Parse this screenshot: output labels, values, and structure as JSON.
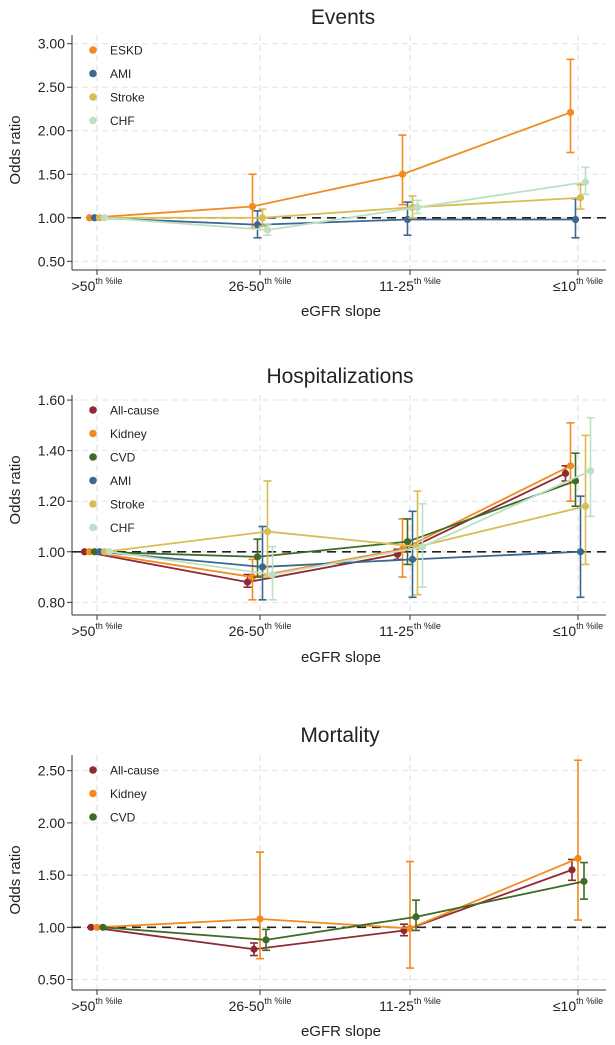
{
  "chart_data": [
    {
      "type": "line",
      "title": "Events",
      "xlabel": "eGFR slope",
      "ylabel": "Odds ratio",
      "categories": [
        {
          "main": ">50",
          "sup": "th %ile"
        },
        {
          "main": "26-50",
          "sup": "th %ile"
        },
        {
          "main": "11-25",
          "sup": "th %ile"
        },
        {
          "main": "≤10",
          "sup": "th %ile"
        }
      ],
      "ylim": [
        0.4,
        3.1
      ],
      "yticks": [
        0.5,
        1.0,
        1.5,
        2.0,
        2.5,
        3.0
      ],
      "ytick_labels": [
        "0.50",
        "1.00",
        "1.50",
        "2.00",
        "2.50",
        "3.00"
      ],
      "reference_line": 1.0,
      "series": [
        {
          "name": "ESKD",
          "color": "#f28a1e",
          "values": [
            1.0,
            1.13,
            1.5,
            2.21
          ],
          "ci_low": [
            1.0,
            0.88,
            1.15,
            1.75
          ],
          "ci_high": [
            1.0,
            1.5,
            1.95,
            2.82
          ]
        },
        {
          "name": "AMI",
          "color": "#3b6790",
          "values": [
            1.0,
            0.92,
            0.98,
            0.98
          ],
          "ci_low": [
            1.0,
            0.77,
            0.8,
            0.77
          ],
          "ci_high": [
            1.0,
            1.08,
            1.18,
            1.22
          ]
        },
        {
          "name": "Stroke",
          "color": "#d8bd52",
          "values": [
            1.0,
            1.0,
            1.12,
            1.23
          ],
          "ci_low": [
            1.0,
            0.9,
            1.0,
            1.1
          ],
          "ci_high": [
            1.0,
            1.1,
            1.25,
            1.38
          ]
        },
        {
          "name": "CHF",
          "color": "#bddfc2",
          "values": [
            1.0,
            0.86,
            1.12,
            1.41
          ],
          "ci_low": [
            1.0,
            0.8,
            1.05,
            1.27
          ],
          "ci_high": [
            1.0,
            0.93,
            1.2,
            1.58
          ]
        }
      ]
    },
    {
      "type": "line",
      "title": "Hospitalizations",
      "xlabel": "eGFR slope",
      "ylabel": "Odds ratio",
      "categories": [
        {
          "main": ">50",
          "sup": "th %ile"
        },
        {
          "main": "26-50",
          "sup": "th %ile"
        },
        {
          "main": "11-25",
          "sup": "th %ile"
        },
        {
          "main": "≤10",
          "sup": "th %ile"
        }
      ],
      "ylim": [
        0.75,
        1.62
      ],
      "yticks": [
        0.8,
        1.0,
        1.2,
        1.4,
        1.6
      ],
      "ytick_labels": [
        "0.80",
        "1.00",
        "1.20",
        "1.40",
        "1.60"
      ],
      "reference_line": 1.0,
      "series": [
        {
          "name": "All-cause",
          "color": "#8e2a33",
          "values": [
            1.0,
            0.88,
            0.99,
            1.31
          ],
          "ci_low": [
            1.0,
            0.86,
            0.97,
            1.28
          ],
          "ci_high": [
            1.0,
            0.91,
            1.01,
            1.34
          ]
        },
        {
          "name": "Kidney",
          "color": "#f28a1e",
          "values": [
            1.0,
            0.9,
            1.01,
            1.34
          ],
          "ci_low": [
            1.0,
            0.81,
            0.9,
            1.2
          ],
          "ci_high": [
            1.0,
            0.97,
            1.13,
            1.51
          ]
        },
        {
          "name": "CVD",
          "color": "#3e6b25",
          "values": [
            1.0,
            0.98,
            1.04,
            1.28
          ],
          "ci_low": [
            1.0,
            0.9,
            0.95,
            1.18
          ],
          "ci_high": [
            1.0,
            1.05,
            1.13,
            1.39
          ]
        },
        {
          "name": "AMI",
          "color": "#3b6790",
          "values": [
            1.0,
            0.94,
            0.97,
            1.0
          ],
          "ci_low": [
            1.0,
            0.81,
            0.82,
            0.82
          ],
          "ci_high": [
            1.0,
            1.1,
            1.16,
            1.22
          ]
        },
        {
          "name": "Stroke",
          "color": "#d8bd52",
          "values": [
            1.0,
            1.08,
            1.02,
            1.18
          ],
          "ci_low": [
            1.0,
            0.9,
            0.83,
            0.95
          ],
          "ci_high": [
            1.0,
            1.28,
            1.24,
            1.46
          ]
        },
        {
          "name": "CHF",
          "color": "#bddfc2",
          "values": [
            1.0,
            0.91,
            1.02,
            1.32
          ],
          "ci_low": [
            1.0,
            0.81,
            0.86,
            1.14
          ],
          "ci_high": [
            1.0,
            1.02,
            1.19,
            1.53
          ]
        }
      ]
    },
    {
      "type": "line",
      "title": "Mortality",
      "xlabel": "eGFR slope",
      "ylabel": "Odds ratio",
      "categories": [
        {
          "main": ">50",
          "sup": "th %ile"
        },
        {
          "main": "26-50",
          "sup": "th %ile"
        },
        {
          "main": "11-25",
          "sup": "th %ile"
        },
        {
          "main": "≤10",
          "sup": "th %ile"
        }
      ],
      "ylim": [
        0.4,
        2.65
      ],
      "yticks": [
        0.5,
        1.0,
        1.5,
        2.0,
        2.5
      ],
      "ytick_labels": [
        "0.50",
        "1.00",
        "1.50",
        "2.00",
        "2.50"
      ],
      "reference_line": 1.0,
      "series": [
        {
          "name": "All-cause",
          "color": "#8e2a33",
          "values": [
            1.0,
            0.79,
            0.97,
            1.55
          ],
          "ci_low": [
            1.0,
            0.73,
            0.92,
            1.45
          ],
          "ci_high": [
            1.0,
            0.85,
            1.03,
            1.65
          ]
        },
        {
          "name": "Kidney",
          "color": "#f28a1e",
          "values": [
            1.0,
            1.08,
            0.99,
            1.66
          ],
          "ci_low": [
            1.0,
            0.7,
            0.61,
            1.07
          ],
          "ci_high": [
            1.0,
            1.72,
            1.63,
            2.6
          ]
        },
        {
          "name": "CVD",
          "color": "#3e6b25",
          "values": [
            1.0,
            0.88,
            1.1,
            1.44
          ],
          "ci_low": [
            1.0,
            0.78,
            0.97,
            1.27
          ],
          "ci_high": [
            1.0,
            0.98,
            1.26,
            1.62
          ]
        }
      ]
    }
  ]
}
